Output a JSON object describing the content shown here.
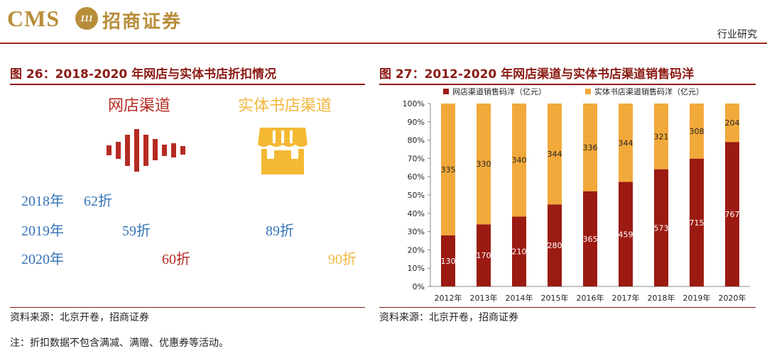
{
  "header": {
    "logo_cms": "CMS",
    "logo_badge": "111",
    "logo_cn": "招商证券",
    "section": "行业研究"
  },
  "figure_left": {
    "title": "图 26：2018-2020 年网店与实体书店折扣情况",
    "online_label": "网店渠道",
    "offline_label": "实体书店渠道",
    "online_icon": "sound-wave-icon",
    "offline_icon": "storefront-icon",
    "rows": [
      {
        "year": "2018年",
        "online": "62折",
        "offline": ""
      },
      {
        "year": "2019年",
        "online": "59折",
        "offline": "89折"
      },
      {
        "year": "2020年",
        "online": "60折",
        "offline": "90折"
      }
    ],
    "source": "资料来源：北京开卷，招商证券"
  },
  "figure_right": {
    "title": "图 27：2012-2020 年网店渠道与实体书店渠道销售码洋",
    "source": "资料来源：北京开卷，招商证券"
  },
  "note": "注：折扣数据不包含满减、满赠、优惠券等活动。",
  "colors": {
    "online": "#9b1b12",
    "offline": "#f2a93b",
    "title": "#8b1a14",
    "year": "#3674b8"
  },
  "chart_data": {
    "type": "bar",
    "stacked": true,
    "normalized": true,
    "categories": [
      "2012年",
      "2013年",
      "2014年",
      "2015年",
      "2016年",
      "2017年",
      "2018年",
      "2019年",
      "2020年"
    ],
    "series": [
      {
        "name": "网店渠道销售码洋（亿元）",
        "values": [
          130,
          170,
          210,
          280,
          365,
          459,
          573,
          715,
          767
        ]
      },
      {
        "name": "实体书店渠道销售码洋（亿元）",
        "values": [
          335,
          330,
          340,
          344,
          336,
          344,
          321,
          308,
          204
        ]
      }
    ],
    "y_ticks": [
      "0%",
      "10%",
      "20%",
      "30%",
      "40%",
      "50%",
      "60%",
      "70%",
      "80%",
      "90%",
      "100%"
    ],
    "ylim": [
      0,
      100
    ],
    "legend_position": "top"
  }
}
